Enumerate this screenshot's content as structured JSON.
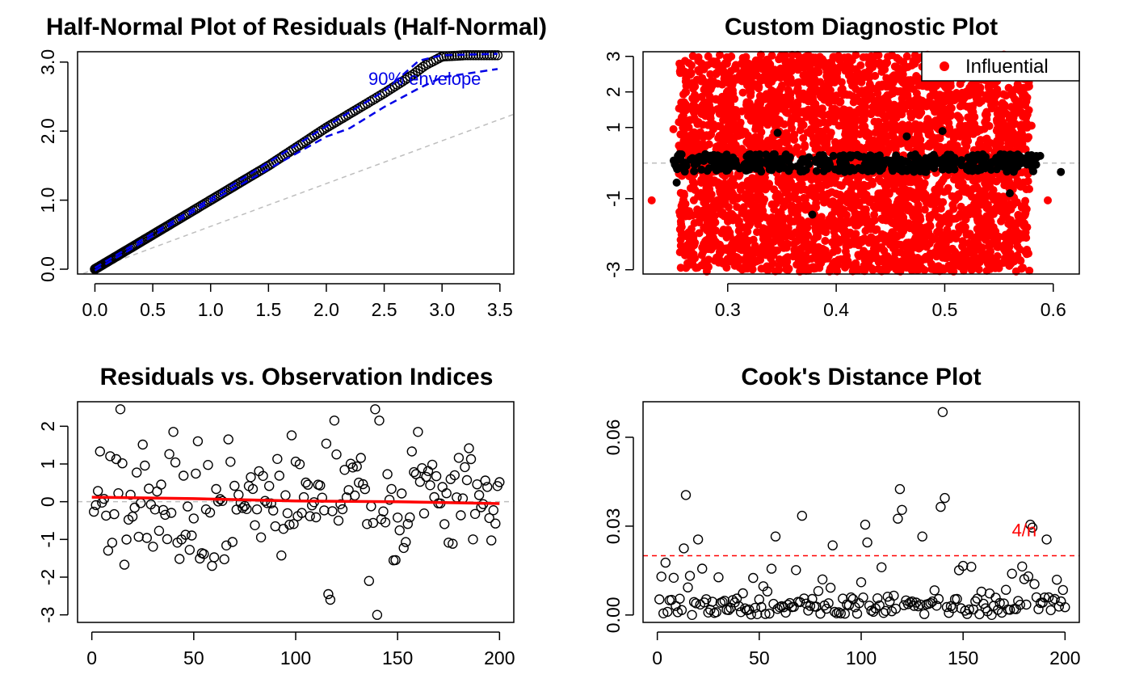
{
  "page": {
    "background": "#ffffff"
  },
  "chart_data": [
    {
      "id": "halfnormal",
      "type": "scatter",
      "title": "Half-Normal Plot of Residuals (Half-Normal)",
      "xlabel": "",
      "ylabel": "",
      "xlim": [
        -0.15,
        3.62
      ],
      "ylim": [
        -0.07,
        3.15
      ],
      "xticks": [
        "0.0",
        "0.5",
        "1.0",
        "1.5",
        "2.0",
        "2.5",
        "3.0",
        "3.5"
      ],
      "yticks": [
        "0.0",
        "1.0",
        "2.0",
        "3.0"
      ],
      "n_points": 200,
      "points_curve": [
        [
          0.0,
          0.0
        ],
        [
          0.5,
          0.5
        ],
        [
          1.0,
          1.0
        ],
        [
          1.5,
          1.5
        ],
        [
          2.0,
          2.05
        ],
        [
          2.25,
          2.3
        ],
        [
          2.5,
          2.55
        ],
        [
          2.75,
          2.82
        ],
        [
          2.85,
          2.95
        ],
        [
          3.0,
          3.08
        ],
        [
          3.2,
          3.1
        ],
        [
          3.48,
          3.1
        ]
      ],
      "envelope_label": "90% envelope",
      "envelope_upper": [
        [
          0.0,
          0.02
        ],
        [
          1.0,
          1.02
        ],
        [
          2.0,
          2.07
        ],
        [
          2.5,
          2.58
        ],
        [
          2.8,
          3.02
        ],
        [
          3.0,
          3.1
        ],
        [
          3.48,
          3.12
        ]
      ],
      "envelope_lower": [
        [
          0.0,
          -0.02
        ],
        [
          1.0,
          0.98
        ],
        [
          1.5,
          1.45
        ],
        [
          2.0,
          1.92
        ],
        [
          2.2,
          2.04
        ],
        [
          2.5,
          2.35
        ],
        [
          2.8,
          2.62
        ],
        [
          3.0,
          2.78
        ],
        [
          3.48,
          2.9
        ]
      ],
      "reference_line": {
        "intercept": 0,
        "slope": 0.62
      },
      "colors": {
        "points": "#000000",
        "envelope": "#0000e6",
        "reference": "#bebebe"
      }
    },
    {
      "id": "custom",
      "type": "scatter",
      "title": "Custom Diagnostic Plot",
      "xlabel": "",
      "ylabel": "",
      "xlim": [
        0.222,
        0.624
      ],
      "ylim": [
        -3.12,
        3.13
      ],
      "xticks": [
        "0.3",
        "0.4",
        "0.5",
        "0.6"
      ],
      "yticks": [
        "-3",
        "-1",
        "1",
        "2",
        "3"
      ],
      "legend": {
        "entries": [
          {
            "name": "Influential",
            "color": "#ff0000"
          }
        ],
        "position": "top-right"
      },
      "red_band": {
        "x_range": [
          0.255,
          0.578
        ],
        "y_range": [
          -3.05,
          3.05
        ]
      },
      "black_band": {
        "x_range": [
          0.25,
          0.585
        ],
        "y_range": [
          -0.35,
          0.35
        ]
      },
      "zero_line": 0,
      "colors": {
        "influential": "#ff0000",
        "normal": "#000000",
        "zero": "#bebebe"
      }
    },
    {
      "id": "resid_index",
      "type": "scatter",
      "title": "Residuals vs. Observation Indices",
      "xlabel": "",
      "ylabel": "",
      "xlim": [
        -7,
        207
      ],
      "ylim": [
        -3.2,
        2.65
      ],
      "xticks": [
        "0",
        "50",
        "100",
        "150",
        "200"
      ],
      "yticks": [
        "-3",
        "-2",
        "-1",
        "0",
        "1",
        "2"
      ],
      "n_points": 200,
      "labeled_points": [
        [
          14,
          2.45
        ],
        [
          139,
          2.45
        ],
        [
          119,
          2.15
        ],
        [
          141,
          2.15
        ],
        [
          140,
          -3.0
        ],
        [
          117,
          -2.6
        ],
        [
          116,
          -2.45
        ]
      ],
      "smooth_line": [
        [
          0,
          0.12
        ],
        [
          50,
          0.08
        ],
        [
          100,
          0.02
        ],
        [
          150,
          0.0
        ],
        [
          200,
          -0.05
        ]
      ],
      "zero_line": 0,
      "colors": {
        "points": "#000000",
        "smooth": "#ff0000",
        "zero": "#bebebe"
      }
    },
    {
      "id": "cooks",
      "type": "scatter",
      "title": "Cook's Distance Plot",
      "xlabel": "",
      "ylabel": "",
      "xlim": [
        -7,
        207
      ],
      "ylim": [
        -0.0025,
        0.072
      ],
      "xticks": [
        "0",
        "50",
        "100",
        "150",
        "200"
      ],
      "yticks": [
        "0.00",
        "0.03",
        "0.06"
      ],
      "n_points": 200,
      "labeled_points": [
        [
          140,
          0.0685
        ],
        [
          14,
          0.0405
        ],
        [
          119,
          0.0425
        ],
        [
          141,
          0.0395
        ],
        [
          139,
          0.0365
        ],
        [
          120,
          0.0355
        ],
        [
          71,
          0.0335
        ],
        [
          118,
          0.0325
        ],
        [
          102,
          0.0305
        ],
        [
          183,
          0.0305
        ],
        [
          184,
          0.0295
        ],
        [
          20,
          0.0255
        ],
        [
          130,
          0.0265
        ],
        [
          58,
          0.0265
        ],
        [
          103,
          0.0245
        ],
        [
          191,
          0.0255
        ],
        [
          13,
          0.0225
        ],
        [
          86,
          0.0235
        ]
      ],
      "threshold": {
        "value": 0.02,
        "label": "4/n"
      },
      "colors": {
        "points": "#000000",
        "threshold": "#ff0000"
      }
    }
  ]
}
